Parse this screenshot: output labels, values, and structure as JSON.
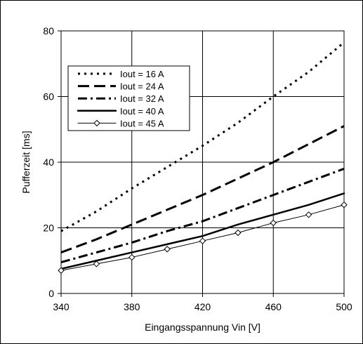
{
  "chart_data": {
    "type": "line",
    "title": "",
    "xlabel": "Eingangsspannung Vin [V]",
    "ylabel": "Pufferzeit [ms]",
    "xlim": [
      340,
      500
    ],
    "ylim": [
      0,
      80
    ],
    "x_ticks": [
      340,
      380,
      420,
      460,
      500
    ],
    "y_ticks": [
      0,
      20,
      40,
      60,
      80
    ],
    "grid": true,
    "legend_position": "top-left",
    "x": [
      340,
      360,
      380,
      400,
      420,
      440,
      460,
      480,
      500
    ],
    "series": [
      {
        "name": "Iout = 16 A",
        "style": "dotted",
        "marker": "none",
        "values": [
          19,
          25,
          32,
          38.5,
          45,
          52,
          60,
          67.5,
          76.5
        ]
      },
      {
        "name": "Iout = 24 A",
        "style": "dashed",
        "marker": "none",
        "values": [
          12.5,
          16.5,
          21,
          25.5,
          30,
          35,
          40,
          45.5,
          51
        ]
      },
      {
        "name": "Iout = 32 A",
        "style": "dashdot",
        "marker": "none",
        "values": [
          9.5,
          12.5,
          15.5,
          19,
          22,
          26,
          30,
          34,
          38
        ]
      },
      {
        "name": "Iout = 40 A",
        "style": "solid-thick",
        "marker": "none",
        "values": [
          7.5,
          10,
          12.5,
          15,
          17.5,
          21,
          24,
          27,
          30.5
        ]
      },
      {
        "name": "Iout = 45 A",
        "style": "solid-thin",
        "marker": "diamond",
        "values": [
          7,
          9,
          11,
          13.5,
          16,
          18.5,
          21.5,
          24,
          27
        ]
      }
    ]
  }
}
